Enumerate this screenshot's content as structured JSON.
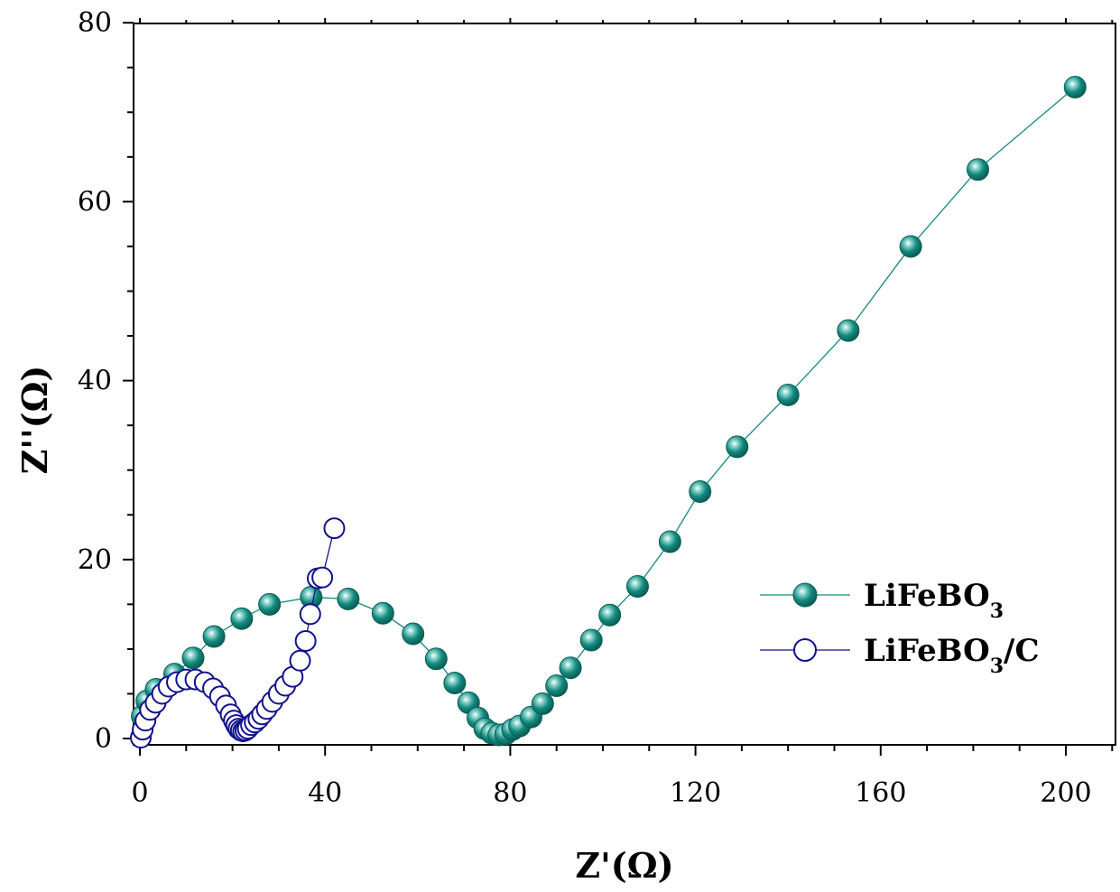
{
  "chart_data": {
    "type": "scatter",
    "xlabel": "Z'(Ω)",
    "ylabel": "Z''(Ω)",
    "xlim": [
      0,
      210
    ],
    "ylim": [
      0,
      80
    ],
    "x_ticks": [
      0,
      40,
      80,
      120,
      160,
      200
    ],
    "y_ticks": [
      0,
      20,
      40,
      60,
      80
    ],
    "grid": false,
    "legend_position": "right",
    "series": [
      {
        "name": "LiFeBO",
        "name_sub": "3",
        "name_suffix": "",
        "marker": "filled-sphere",
        "color": "#138a7e",
        "x": [
          0.5,
          1.5,
          3.5,
          7.5,
          11.5,
          16,
          22,
          28,
          37,
          45,
          52.5,
          59,
          64,
          68,
          71,
          73,
          74.5,
          76,
          77.5,
          79,
          80.5,
          82,
          84.5,
          87,
          90,
          93,
          97.5,
          101.5,
          107.5,
          114.5,
          121,
          129,
          140,
          153,
          166.5,
          181,
          202
        ],
        "y": [
          2.5,
          4.2,
          5.5,
          7.2,
          9.0,
          11.4,
          13.4,
          15.0,
          15.8,
          15.6,
          14.0,
          11.7,
          8.9,
          6.2,
          4.0,
          2.3,
          1.1,
          0.6,
          0.4,
          0.5,
          1.0,
          1.4,
          2.4,
          3.9,
          5.9,
          7.9,
          11.0,
          13.8,
          17.0,
          22.0,
          27.6,
          32.6,
          38.4,
          45.6,
          55.0,
          63.6,
          72.8
        ]
      },
      {
        "name": "LiFeBO",
        "name_sub": "3",
        "name_suffix": "/C",
        "marker": "open-circle",
        "color": "#12128c",
        "x": [
          0.2,
          0.6,
          1.2,
          2.2,
          3.4,
          4.8,
          6.2,
          8.0,
          10.0,
          12.0,
          14.0,
          15.8,
          17.3,
          18.6,
          19.6,
          20.3,
          20.8,
          21.3,
          21.8,
          22.3,
          22.8,
          23.3,
          24.0,
          24.8,
          25.6,
          26.4,
          27.4,
          28.6,
          30.0,
          31.4,
          33.0,
          34.6,
          35.8,
          36.8,
          38.4,
          39.4,
          42.0
        ],
        "y": [
          0.1,
          1.0,
          2.0,
          3.2,
          4.0,
          5.0,
          5.8,
          6.3,
          6.6,
          6.6,
          6.3,
          5.6,
          4.7,
          3.7,
          2.7,
          2.0,
          1.5,
          1.1,
          0.9,
          0.8,
          0.9,
          1.1,
          1.5,
          1.8,
          2.2,
          2.7,
          3.3,
          4.1,
          5.0,
          5.9,
          6.9,
          8.7,
          10.9,
          13.9,
          17.9,
          18.0,
          23.5
        ]
      }
    ]
  }
}
